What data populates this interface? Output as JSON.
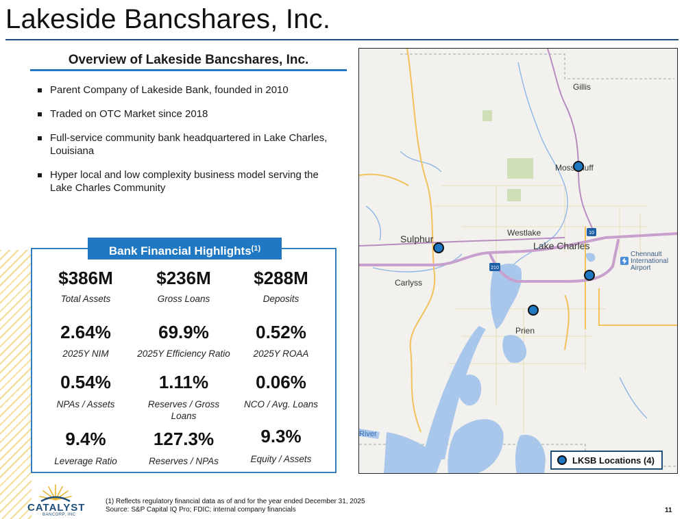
{
  "title": "Lakeside Bancshares, Inc.",
  "overview": {
    "heading": "Overview of Lakeside Bancshares, Inc.",
    "bullets": [
      "Parent Company of Lakeside Bank, founded in 2010",
      "Traded on OTC Market since 2018",
      "Full-service community bank headquartered in Lake Charles, Louisiana",
      "Hyper local and low complexity business model serving the Lake Charles Community"
    ]
  },
  "highlights": {
    "heading": "Bank Financial Highlights",
    "heading_sup": "(1)",
    "metrics": [
      {
        "value": "$386M",
        "label": "Total Assets"
      },
      {
        "value": "$236M",
        "label": "Gross Loans"
      },
      {
        "value": "$288M",
        "label": "Deposits"
      },
      {
        "value": "2.64%",
        "label": "2025Y NIM"
      },
      {
        "value": "69.9%",
        "label": "2025Y Efficiency Ratio"
      },
      {
        "value": "0.52%",
        "label": "2025Y ROAA"
      },
      {
        "value": "0.54%",
        "label": "NPAs / Assets"
      },
      {
        "value": "1.11%",
        "label": "Reserves / Gross Loans"
      },
      {
        "value": "0.06%",
        "label": "NCO / Avg. Loans"
      },
      {
        "value": "9.4%",
        "label": "Leverage Ratio"
      },
      {
        "value": "127.3%",
        "label": "Reserves / NPAs"
      },
      {
        "value": "9.3%",
        "label": "Equity / Assets"
      }
    ]
  },
  "map": {
    "places": {
      "gillis": "Gillis",
      "moss_bluff": "Moss Bluff",
      "sulphur": "Sulphur",
      "westlake": "Westlake",
      "lake_charles": "Lake Charles",
      "carlyss": "Carlyss",
      "prien": "Prien",
      "airport": "Chennault International Airport",
      "river": "River"
    },
    "shields": {
      "i10": "10",
      "i210": "210"
    },
    "legend": "LKSB Locations (4)",
    "marker_color": "#1f78c1"
  },
  "logo": {
    "name": "CATALYST",
    "sub": "BANCORP, INC"
  },
  "footnote": {
    "line1": "(1) Reflects regulatory financial data as of and for the year ended December 31, 2025",
    "line2": "Source: S&P Capital IQ Pro; FDIC; internal company financials"
  },
  "page_number": "11"
}
